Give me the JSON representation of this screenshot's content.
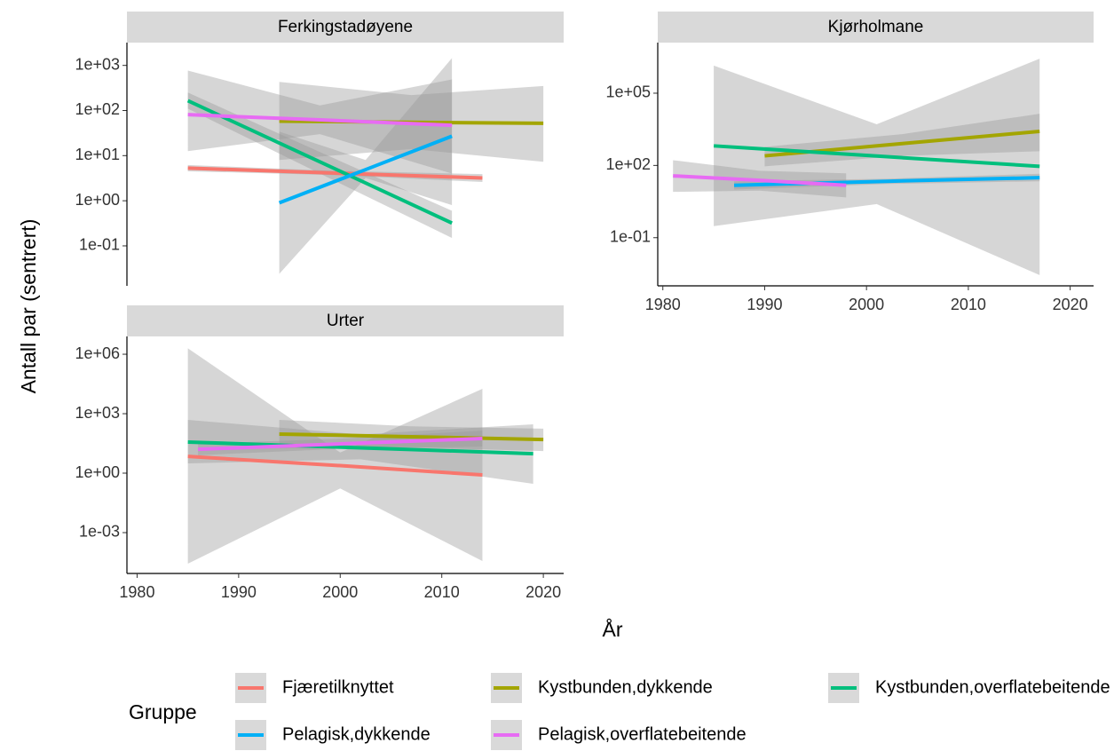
{
  "x_label": "År",
  "y_label": "Antall par (sentrert)",
  "legend": {
    "title": "Gruppe",
    "columns": 3,
    "items": [
      {
        "name": "Fjæretilknyttet",
        "color": "#F8766D"
      },
      {
        "name": "Kystbunden,dykkende",
        "color": "#A3A500"
      },
      {
        "name": "Kystbunden,overflatebeitende",
        "color": "#00BF7D"
      },
      {
        "name": "Pelagisk,dykkende",
        "color": "#00B0F6"
      },
      {
        "name": "Pelagisk,overflatebeitende",
        "color": "#E76BF3"
      }
    ]
  },
  "chart_data": [
    {
      "type": "line",
      "title": "Ferkingstadøyene",
      "log_y": true,
      "ribbon_color": "#999999",
      "xlim": [
        1979,
        2022
      ],
      "ylim": [
        0.013,
        3200
      ],
      "yticks": [
        {
          "value": 1000,
          "label": "1e+03"
        },
        {
          "value": 100,
          "label": "1e+02"
        },
        {
          "value": 10,
          "label": "1e+01"
        },
        {
          "value": 1,
          "label": "1e+00"
        },
        {
          "value": 0.1,
          "label": "1e-01"
        }
      ],
      "series": [
        {
          "name": "Fjæretilknyttet",
          "x": [
            1985,
            1999.5,
            2014
          ],
          "values": [
            5.3,
            4.1,
            3.2
          ],
          "lower": [
            4.5,
            3.7,
            2.6
          ],
          "upper": [
            6.2,
            4.6,
            3.9
          ]
        },
        {
          "name": "Kystbunden,dykkende",
          "x": [
            1994,
            2007,
            2020
          ],
          "values": [
            58,
            55,
            52
          ],
          "lower": [
            8,
            14,
            7.3
          ],
          "upper": [
            430,
            220,
            350
          ]
        },
        {
          "name": "Kystbunden,overflatebeitende",
          "x": [
            1985,
            1998,
            2011
          ],
          "values": [
            165,
            7.3,
            0.32
          ],
          "lower": [
            110,
            4,
            0.15
          ],
          "upper": [
            250,
            12,
            0.6
          ]
        },
        {
          "name": "Pelagisk,dykkende",
          "x": [
            1994,
            2002.5,
            2011
          ],
          "values": [
            0.9,
            4.9,
            27
          ],
          "lower": [
            0.024,
            3.2,
            0.8
          ],
          "upper": [
            34,
            8,
            1450
          ]
        },
        {
          "name": "Pelagisk,overflatebeitende",
          "x": [
            1985,
            1998,
            2011
          ],
          "values": [
            81,
            62,
            47
          ],
          "lower": [
            12.6,
            30,
            4
          ],
          "upper": [
            770,
            130,
            490
          ]
        }
      ]
    },
    {
      "type": "line",
      "title": "Kjørholmane",
      "log_y": true,
      "ribbon_color": "#999999",
      "xlim": [
        1979.5,
        2022.3
      ],
      "ylim": [
        0.001,
        12600000
      ],
      "xticks": [
        1980,
        1990,
        2000,
        2010,
        2020
      ],
      "yticks": [
        {
          "value": 100000,
          "label": "1e+05"
        },
        {
          "value": 100,
          "label": "1e+02"
        },
        {
          "value": 0.1,
          "label": "1e-01"
        }
      ],
      "series": [
        {
          "name": "Kystbunden,dykkende",
          "x": [
            1990,
            2003.5,
            2017
          ],
          "values": [
            250,
            810,
            2600
          ],
          "lower": [
            92,
            250,
            390
          ],
          "upper": [
            590,
            2000,
            14000
          ]
        },
        {
          "name": "Kystbunden,overflatebeitende",
          "x": [
            1985,
            2001,
            2017
          ],
          "values": [
            650,
            245,
            92
          ],
          "lower": [
            0.3,
            2.5,
            0.0028
          ],
          "upper": [
            1400000,
            5100,
            2700000
          ]
        },
        {
          "name": "Pelagisk,dykkende",
          "x": [
            1987,
            2002,
            2017
          ],
          "values": [
            15,
            22,
            31
          ],
          "lower": [
            10,
            17,
            22
          ],
          "upper": [
            22,
            28,
            45
          ]
        },
        {
          "name": "Pelagisk,overflatebeitende",
          "x": [
            1981,
            1989.5,
            1998
          ],
          "values": [
            37,
            24,
            15
          ],
          "lower": [
            8,
            9,
            4.7
          ],
          "upper": [
            165,
            60,
            47
          ]
        }
      ]
    },
    {
      "type": "line",
      "title": "Urter",
      "log_y": true,
      "ribbon_color": "#999999",
      "xlim": [
        1979,
        2022
      ],
      "ylim": [
        8.7e-06,
        7900000
      ],
      "xticks": [
        1980,
        1990,
        2000,
        2010,
        2020
      ],
      "yticks": [
        {
          "value": 1000000,
          "label": "1e+06"
        },
        {
          "value": 1000,
          "label": "1e+03"
        },
        {
          "value": 1,
          "label": "1e+00"
        },
        {
          "value": 0.001,
          "label": "1e-03"
        }
      ],
      "series": [
        {
          "name": "Fjæretilknyttet",
          "x": [
            1985,
            2000,
            2014
          ],
          "values": [
            7,
            2.4,
            0.81
          ],
          "lower": [
            2.7e-05,
            0.17,
            3.7e-05
          ],
          "upper": [
            2000000,
            11,
            18000
          ]
        },
        {
          "name": "Kystbunden,dykkende",
          "x": [
            1994,
            2007,
            2020
          ],
          "values": [
            94,
            69,
            50
          ],
          "lower": [
            18,
            20,
            13
          ],
          "upper": [
            490,
            230,
            175
          ]
        },
        {
          "name": "Kystbunden,overflatebeitende",
          "x": [
            1985,
            2002,
            2019
          ],
          "values": [
            37,
            19,
            9.6
          ],
          "lower": [
            3.1,
            5,
            0.29
          ],
          "upper": [
            490,
            90,
            290
          ]
        },
        {
          "name": "Pelagisk,overflatebeitende",
          "x": [
            1986,
            2000,
            2014
          ],
          "values": [
            16,
            30,
            56
          ],
          "lower": [
            8,
            17,
            22
          ],
          "upper": [
            30,
            55,
            140
          ]
        }
      ]
    }
  ]
}
